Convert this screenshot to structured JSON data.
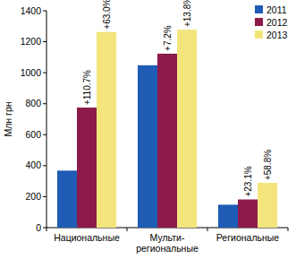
{
  "chart_data": {
    "type": "bar",
    "y_label": "Млн грн",
    "categories": [
      "Национальные",
      "Мульти-\nрегиональные",
      "Региональные"
    ],
    "series": [
      {
        "name": "2011",
        "color": "#1f5cb5",
        "values": [
          368,
          1048,
          148
        ]
      },
      {
        "name": "2012",
        "color": "#8c1b4b",
        "values": [
          775,
          1123,
          182
        ]
      },
      {
        "name": "2013",
        "color": "#f3e57c",
        "values": [
          1263,
          1278,
          289
        ]
      }
    ],
    "annotations": [
      {
        "text": "+110.7%",
        "series": 1,
        "category": 0
      },
      {
        "text": "+63.0%",
        "series": 2,
        "category": 0
      },
      {
        "text": "+7.2%",
        "series": 1,
        "category": 1
      },
      {
        "text": "+13.8%",
        "series": 2,
        "category": 1
      },
      {
        "text": "+23.1%",
        "series": 1,
        "category": 2
      },
      {
        "text": "+58.8%",
        "series": 2,
        "category": 2
      }
    ],
    "ylim": [
      0,
      1400
    ],
    "yticks": [
      0,
      200,
      400,
      600,
      800,
      1000,
      1200,
      1400
    ],
    "grid": false,
    "legend": "top-right"
  }
}
